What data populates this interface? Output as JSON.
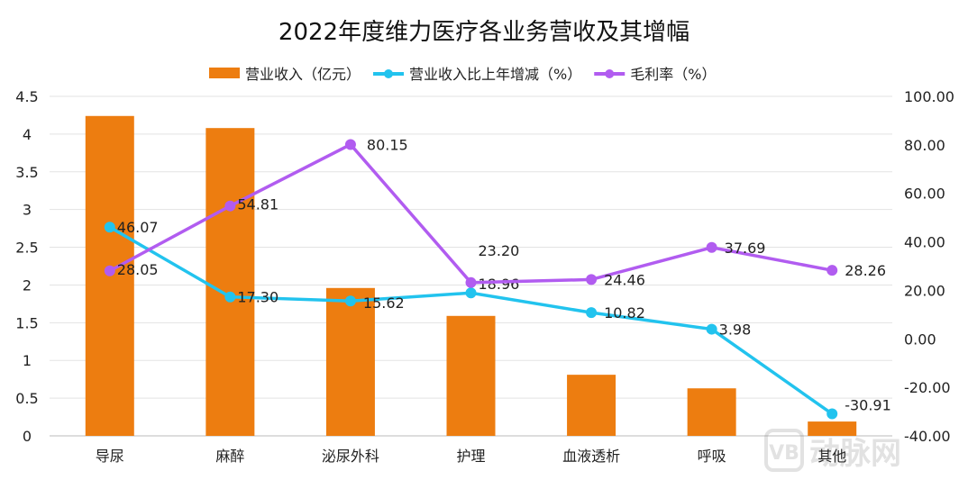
{
  "chart_data": {
    "type": "bar+line",
    "title": "2022年度维力医疗各业务营收及其增幅",
    "categories": [
      "导尿",
      "麻醉",
      "泌尿外科",
      "护理",
      "血液透析",
      "呼吸",
      "其他"
    ],
    "series": [
      {
        "name": "营业收入（亿元）",
        "type": "bar",
        "axis": "left",
        "color": "#ED7D10",
        "values": [
          4.24,
          4.08,
          1.96,
          1.59,
          0.81,
          0.63,
          0.19
        ]
      },
      {
        "name": "营业收入比上年增减（%）",
        "type": "line",
        "axis": "right",
        "color": "#22C3EE",
        "values": [
          46.07,
          17.3,
          15.62,
          18.96,
          10.82,
          3.98,
          -30.91
        ],
        "labels": [
          "46.07",
          "17.30",
          "15.62",
          "18.96",
          "10.82",
          "3.98",
          "-30.91"
        ]
      },
      {
        "name": "毛利率（%）",
        "type": "line",
        "axis": "right",
        "color": "#B15CF0",
        "values": [
          28.05,
          54.81,
          80.15,
          23.2,
          24.46,
          37.69,
          28.26
        ],
        "labels": [
          "28.05",
          "54.81",
          "80.15",
          "23.20",
          "24.46",
          "37.69",
          "28.26"
        ]
      }
    ],
    "y_left": {
      "ylim": [
        0,
        4.5
      ],
      "ticks": [
        "0",
        "0.5",
        "1",
        "1.5",
        "2",
        "2.5",
        "3",
        "3.5",
        "4",
        "4.5"
      ]
    },
    "y_right": {
      "ylim": [
        -40,
        100
      ],
      "ticks": [
        "-40.00",
        "-20.00",
        "0.00",
        "20.00",
        "40.00",
        "60.00",
        "80.00",
        "100.00"
      ]
    },
    "grid": true,
    "legend": "top"
  },
  "watermark": "动脉网"
}
